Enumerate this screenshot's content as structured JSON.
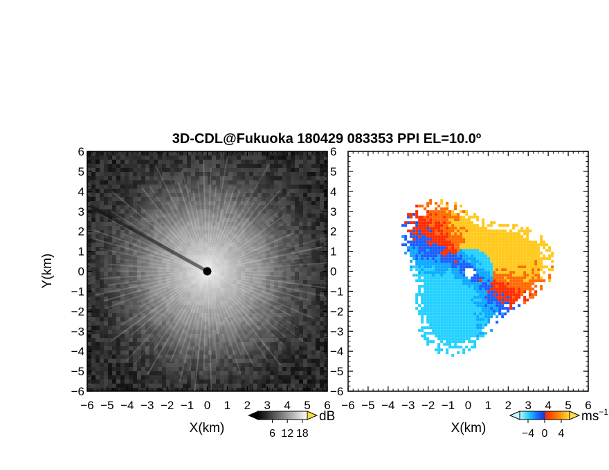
{
  "title": "3D-CDL@Fukuoka 180429 083353 PPI EL=10.0º",
  "colors": {
    "background": "#ffffff",
    "reflectivity_bg": "#141414",
    "velocity_negative_light": "#22d0ff",
    "velocity_negative": "#1a5cff",
    "velocity_positive": "#ff2a00",
    "velocity_positive_light": "#ffd21a"
  },
  "chart_data": [
    {
      "type": "heatmap",
      "panel": "left",
      "variable": "backscatter intensity (grayscale)",
      "xlabel": "X(km)",
      "ylabel": "Y(km)",
      "xlim": [
        -6,
        6
      ],
      "ylim": [
        -6,
        6
      ],
      "xticks": [
        -6,
        -5,
        -4,
        -3,
        -2,
        -1,
        0,
        1,
        2,
        3,
        4,
        5,
        6
      ],
      "yticks": [
        -6,
        -5,
        -4,
        -3,
        -2,
        -1,
        0,
        1,
        2,
        3,
        4,
        5,
        6
      ],
      "grid": false,
      "colorbar": {
        "unit": "dB",
        "ticks": [
          6,
          12,
          18
        ],
        "range": [
          0,
          20
        ],
        "placement": "bottom-right"
      }
    },
    {
      "type": "heatmap",
      "panel": "right",
      "variable": "radial velocity (diverging blue-red)",
      "xlabel": "X(km)",
      "ylabel": "",
      "xlim": [
        -6,
        6
      ],
      "ylim": [
        -6,
        6
      ],
      "xticks": [
        -6,
        -5,
        -4,
        -3,
        -2,
        -1,
        0,
        1,
        2,
        3,
        4,
        5,
        6
      ],
      "yticks": [
        -6,
        -5,
        -4,
        -3,
        -2,
        -1,
        0,
        1,
        2,
        3,
        4,
        5,
        6
      ],
      "grid": false,
      "data_extent_km": 4.3,
      "colorbar": {
        "unit": "ms",
        "unit_exponent": "−1",
        "ticks": [
          -4,
          0,
          4
        ],
        "range": [
          -6,
          6
        ],
        "placement": "bottom-right"
      }
    }
  ]
}
